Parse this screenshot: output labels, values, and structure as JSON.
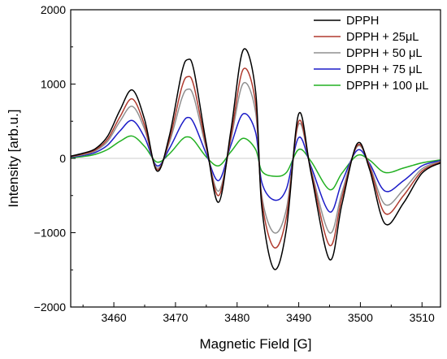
{
  "chart_data": {
    "type": "line",
    "xlabel": "Magnetic Field [G]",
    "ylabel": "Intensity [arb.u.]",
    "xlim": [
      3453,
      3513
    ],
    "ylim": [
      -2000,
      2000
    ],
    "x_ticks": [
      3460,
      3470,
      3480,
      3490,
      3500,
      3510
    ],
    "y_ticks": [
      -2000,
      -1000,
      0,
      1000,
      2000
    ],
    "x_tick_labels": [
      "3460",
      "3470",
      "3480",
      "3490",
      "3500",
      "3510"
    ],
    "y_tick_labels": [
      "−2000",
      "−1000",
      "0",
      "1000",
      "2000"
    ],
    "grid": false,
    "legend_position": "top-right",
    "x": [
      3453,
      3455,
      3457,
      3459,
      3461,
      3463,
      3465,
      3467,
      3469,
      3471,
      3472,
      3473,
      3475,
      3477,
      3479,
      3481,
      3483,
      3484,
      3486,
      3488,
      3490,
      3492,
      3495,
      3497,
      3499.5,
      3501.5,
      3504,
      3507,
      3510,
      3513
    ],
    "series": [
      {
        "name": "DPPH",
        "color": "#000000",
        "values": [
          30,
          70,
          130,
          300,
          650,
          920,
          520,
          -170,
          300,
          1150,
          1330,
          1180,
          200,
          -590,
          380,
          1460,
          900,
          -650,
          -1490,
          -950,
          600,
          -200,
          -1360,
          -620,
          200,
          -150,
          -880,
          -600,
          -200,
          -60
        ]
      },
      {
        "name": "DPPH + 25μL",
        "color": "#b03a2e",
        "values": [
          25,
          60,
          115,
          260,
          560,
          800,
          440,
          -150,
          250,
          950,
          1100,
          970,
          160,
          -500,
          300,
          1200,
          740,
          -560,
          -1200,
          -790,
          500,
          -170,
          -1170,
          -530,
          175,
          -110,
          -740,
          -500,
          -170,
          -50
        ]
      },
      {
        "name": "DPPH + 50 μL",
        "color": "#909090",
        "values": [
          22,
          50,
          100,
          230,
          500,
          700,
          390,
          -130,
          210,
          800,
          930,
          820,
          130,
          -440,
          260,
          1010,
          620,
          -500,
          -1000,
          -680,
          460,
          -150,
          -1000,
          -460,
          160,
          -95,
          -620,
          -420,
          -140,
          -40
        ]
      },
      {
        "name": "DPPH + 75 μL",
        "color": "#1c1cc8",
        "values": [
          18,
          40,
          80,
          180,
          370,
          510,
          280,
          -100,
          130,
          460,
          550,
          470,
          60,
          -300,
          180,
          600,
          350,
          -320,
          -560,
          -410,
          280,
          -110,
          -720,
          -320,
          110,
          -70,
          -440,
          -300,
          -100,
          -30
        ]
      },
      {
        "name": "DPPH + 100 μL",
        "color": "#22b022",
        "values": [
          10,
          25,
          55,
          120,
          230,
          300,
          160,
          -50,
          60,
          250,
          290,
          240,
          20,
          -100,
          90,
          270,
          120,
          -170,
          -240,
          -190,
          120,
          -40,
          -420,
          -200,
          40,
          -25,
          -190,
          -130,
          -60,
          -20
        ]
      }
    ]
  }
}
